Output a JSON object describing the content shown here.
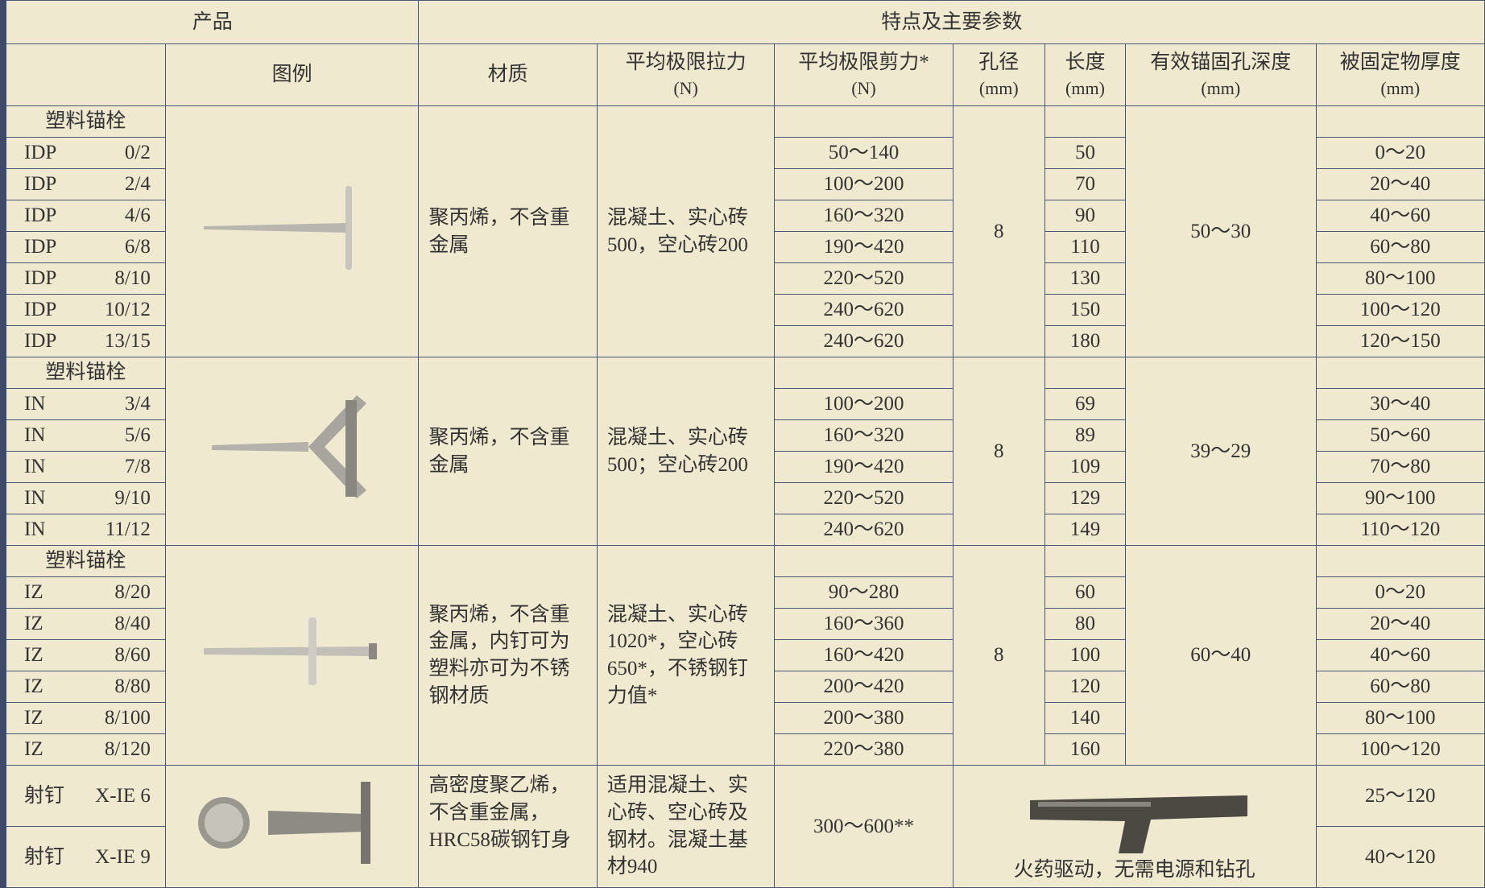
{
  "header": {
    "product": "产品",
    "features": "特点及主要参数"
  },
  "columns": [
    {
      "label": "图例"
    },
    {
      "label": "材质"
    },
    {
      "label": "平均极限拉力",
      "unit": "(N)"
    },
    {
      "label": "平均极限剪力*",
      "unit": "(N)"
    },
    {
      "label": "孔径",
      "unit": "(mm)"
    },
    {
      "label": "长度",
      "unit": "(mm)"
    },
    {
      "label": "有效锚固孔深度",
      "unit": "(mm)"
    },
    {
      "label": "被固定物厚度",
      "unit": "(mm)"
    }
  ],
  "groups": [
    {
      "name": "塑料锚栓",
      "material": "聚丙烯，不含重金属",
      "tensile": "混凝土、实心砖500，空心砖200",
      "hole": "8",
      "depth": "50～30",
      "rows": [
        {
          "type": "IDP",
          "size": "0/2",
          "shear": "50～140",
          "length": "50",
          "thickness": "0～20"
        },
        {
          "type": "IDP",
          "size": "2/4",
          "shear": "100～200",
          "length": "70",
          "thickness": "20～40"
        },
        {
          "type": "IDP",
          "size": "4/6",
          "shear": "160～320",
          "length": "90",
          "thickness": "40～60"
        },
        {
          "type": "IDP",
          "size": "6/8",
          "shear": "190～420",
          "length": "110",
          "thickness": "60～80"
        },
        {
          "type": "IDP",
          "size": "8/10",
          "shear": "220～520",
          "length": "130",
          "thickness": "80～100"
        },
        {
          "type": "IDP",
          "size": "10/12",
          "shear": "240～620",
          "length": "150",
          "thickness": "100～120"
        },
        {
          "type": "IDP",
          "size": "13/15",
          "shear": "240～620",
          "length": "180",
          "thickness": "120～150"
        }
      ]
    },
    {
      "name": "塑料锚栓",
      "material": "聚丙烯，不含重金属",
      "tensile": "混凝土、实心砖500；空心砖200",
      "hole": "8",
      "depth": "39～29",
      "rows": [
        {
          "type": "IN",
          "size": "3/4",
          "shear": "100～200",
          "length": "69",
          "thickness": "30～40"
        },
        {
          "type": "IN",
          "size": "5/6",
          "shear": "160～320",
          "length": "89",
          "thickness": "50～60"
        },
        {
          "type": "IN",
          "size": "7/8",
          "shear": "190～420",
          "length": "109",
          "thickness": "70～80"
        },
        {
          "type": "IN",
          "size": "9/10",
          "shear": "220～520",
          "length": "129",
          "thickness": "90～100"
        },
        {
          "type": "IN",
          "size": "11/12",
          "shear": "240～620",
          "length": "149",
          "thickness": "110～120"
        }
      ]
    },
    {
      "name": "塑料锚栓",
      "material": "聚丙烯，不含重金属，内钉可为塑料亦可为不锈钢材质",
      "tensile": "混凝土、实心砖1020*，空心砖650*，不锈钢钉力值*",
      "hole": "8",
      "depth": "60～40",
      "rows": [
        {
          "type": "IZ",
          "size": "8/20",
          "shear": "90～280",
          "length": "60",
          "thickness": "0～20"
        },
        {
          "type": "IZ",
          "size": "8/40",
          "shear": "160～360",
          "length": "80",
          "thickness": "20～40"
        },
        {
          "type": "IZ",
          "size": "8/60",
          "shear": "160～420",
          "length": "100",
          "thickness": "40～60"
        },
        {
          "type": "IZ",
          "size": "8/80",
          "shear": "200～420",
          "length": "120",
          "thickness": "60～80"
        },
        {
          "type": "IZ",
          "size": "8/100",
          "shear": "200～380",
          "length": "140",
          "thickness": "80～100"
        },
        {
          "type": "IZ",
          "size": "8/120",
          "shear": "220～380",
          "length": "160",
          "thickness": "100～120"
        }
      ]
    }
  ],
  "last": {
    "material": "高密度聚乙烯，不含重金属，HRC58碳钢钉身",
    "tensile": "适用混凝土、实心砖、空心砖及钢材。混凝土基材940",
    "shear": "300～600**",
    "note": "火药驱动，无需电源和钻孔",
    "rows": [
      {
        "type": "射钉",
        "size": "X-IE 6",
        "thickness": "25～120"
      },
      {
        "type": "射钉",
        "size": "X-IE 9",
        "thickness": "40～120"
      }
    ]
  }
}
